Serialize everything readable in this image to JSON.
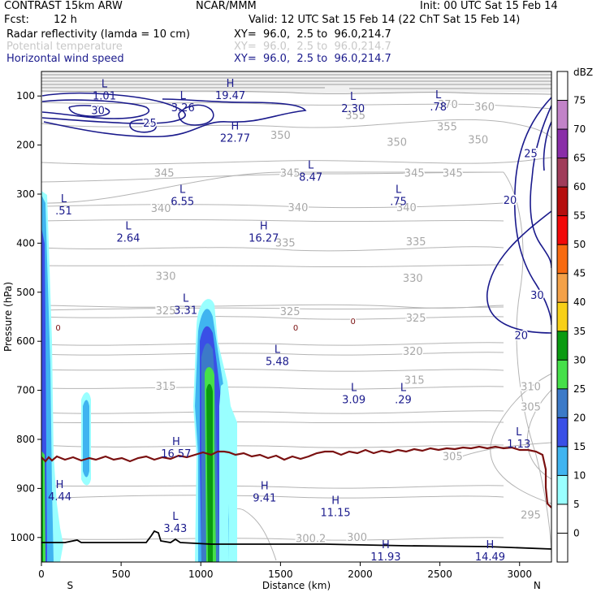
{
  "header": {
    "model": "CONTRAST 15km ARW",
    "center": "NCAR/MMM",
    "init": "Init: 00 UTC Sat 15 Feb 14",
    "fcst_label": "Fcst:",
    "fcst_value": "12 h",
    "valid": "Valid: 12 UTC Sat 15 Feb 14 (22 ChT Sat 15 Feb 14)",
    "fields": [
      {
        "name": "Radar reflectivity (lamda = 10 cm)",
        "xy": "XY=  96.0,  2.5 to  96.0,214.7"
      },
      {
        "name": "Potential temperature",
        "xy": "XY=  96.0,  2.5 to  96.0,214.7"
      },
      {
        "name": "Horizontal wind speed",
        "xy": "XY=  96.0,  2.5 to  96.0,214.7"
      }
    ]
  },
  "chart_data": {
    "type": "heatmap",
    "xlabel": "Distance (km)",
    "ylabel": "Pressure (hPa)",
    "xlim": [
      0,
      3200
    ],
    "ylim": [
      1050,
      50
    ],
    "x_ticks": [
      "0",
      "500",
      "1000",
      "1500",
      "2000",
      "2500",
      "3000"
    ],
    "y_ticks": [
      "100",
      "200",
      "300",
      "400",
      "500",
      "600",
      "700",
      "800",
      "900",
      "1000"
    ],
    "end_labels": [
      "S",
      "N"
    ],
    "colorbar": {
      "unit": "dBZ",
      "levels": [
        "0",
        "5",
        "10",
        "15",
        "20",
        "25",
        "30",
        "35",
        "40",
        "45",
        "50",
        "55",
        "60",
        "65",
        "70",
        "75"
      ],
      "colors": [
        "#ffffff",
        "#ffffff",
        "#99ffff",
        "#40b4f0",
        "#3a4fe6",
        "#3c7ac8",
        "#46e04a",
        "#0a9a10",
        "#f7d018",
        "#f4a148",
        "#f86a10",
        "#f20808",
        "#b50e0e",
        "#a03c5a",
        "#8a2ea8",
        "#c283c8",
        "#ffffff"
      ]
    },
    "theta_labels": [
      {
        "text": "370",
        "x": 2550,
        "p": 118
      },
      {
        "text": "360",
        "x": 2780,
        "p": 123
      },
      {
        "text": "355",
        "x": 1970,
        "p": 140
      },
      {
        "text": "355",
        "x": 2545,
        "p": 163
      },
      {
        "text": "350",
        "x": 1500,
        "p": 181
      },
      {
        "text": "350",
        "x": 2230,
        "p": 195
      },
      {
        "text": "350",
        "x": 2740,
        "p": 190
      },
      {
        "text": "345",
        "x": 770,
        "p": 258
      },
      {
        "text": "345",
        "x": 1560,
        "p": 258
      },
      {
        "text": "345",
        "x": 2340,
        "p": 258
      },
      {
        "text": "345",
        "x": 2580,
        "p": 258
      },
      {
        "text": "340",
        "x": 750,
        "p": 330
      },
      {
        "text": "340",
        "x": 1610,
        "p": 328
      },
      {
        "text": "340",
        "x": 2290,
        "p": 328
      },
      {
        "text": "335",
        "x": 1530,
        "p": 400
      },
      {
        "text": "335",
        "x": 2350,
        "p": 398
      },
      {
        "text": "330",
        "x": 780,
        "p": 468
      },
      {
        "text": "330",
        "x": 2330,
        "p": 472
      },
      {
        "text": "325",
        "x": 780,
        "p": 538
      },
      {
        "text": "325",
        "x": 1560,
        "p": 540
      },
      {
        "text": "325",
        "x": 2350,
        "p": 553
      },
      {
        "text": "320",
        "x": 2330,
        "p": 621
      },
      {
        "text": "315",
        "x": 780,
        "p": 692
      },
      {
        "text": "315",
        "x": 2340,
        "p": 680
      },
      {
        "text": "310",
        "x": 3070,
        "p": 693
      },
      {
        "text": "305",
        "x": 3070,
        "p": 735
      },
      {
        "text": "305",
        "x": 2580,
        "p": 836
      },
      {
        "text": "300.2",
        "x": 1690,
        "p": 1003
      },
      {
        "text": "300",
        "x": 1980,
        "p": 1000
      },
      {
        "text": "295",
        "x": 3070,
        "p": 955
      }
    ],
    "wind_contour_labels": [
      {
        "text": "30",
        "x": 355,
        "p": 130
      },
      {
        "text": "25",
        "x": 680,
        "p": 156
      },
      {
        "text": "25",
        "x": 3070,
        "p": 218
      },
      {
        "text": "20",
        "x": 2940,
        "p": 313
      },
      {
        "text": "30",
        "x": 3110,
        "p": 507
      },
      {
        "text": "20",
        "x": 3010,
        "p": 589
      }
    ],
    "zero_contour_labels": [
      {
        "text": "0",
        "x": 105,
        "p": 573
      },
      {
        "text": "0",
        "x": 1595,
        "p": 573
      },
      {
        "text": "0",
        "x": 1955,
        "p": 560
      }
    ],
    "extrema": [
      {
        "type": "L",
        "value": "1.01",
        "x": 395,
        "p": 86
      },
      {
        "type": "L",
        "value": "3.26",
        "x": 888,
        "p": 110
      },
      {
        "type": "H",
        "value": "19.47",
        "x": 1185,
        "p": 85
      },
      {
        "type": "L",
        "value": "2.30",
        "x": 1955,
        "p": 111
      },
      {
        "type": "L",
        "value": ".78",
        "x": 2490,
        "p": 108
      },
      {
        "type": "H",
        "value": "22.77",
        "x": 1215,
        "p": 172
      },
      {
        "type": "L",
        "value": "8.47",
        "x": 1690,
        "p": 251
      },
      {
        "type": "L",
        "value": "6.55",
        "x": 885,
        "p": 301
      },
      {
        "type": "L",
        "value": ".75",
        "x": 2240,
        "p": 301
      },
      {
        "type": "L",
        "value": ".51",
        "x": 140,
        "p": 320
      },
      {
        "type": "L",
        "value": "2.64",
        "x": 545,
        "p": 375
      },
      {
        "type": "H",
        "value": "16.27",
        "x": 1395,
        "p": 375
      },
      {
        "type": "L",
        "value": "3.31",
        "x": 905,
        "p": 523
      },
      {
        "type": "L",
        "value": "5.48",
        "x": 1480,
        "p": 627
      },
      {
        "type": "L",
        "value": "3.09",
        "x": 1960,
        "p": 705
      },
      {
        "type": "L",
        "value": ".29",
        "x": 2270,
        "p": 705
      },
      {
        "type": "H",
        "value": "16.57",
        "x": 845,
        "p": 815
      },
      {
        "type": "L",
        "value": "1.13",
        "x": 2995,
        "p": 795
      },
      {
        "type": "H",
        "value": "4.44",
        "x": 115,
        "p": 903
      },
      {
        "type": "H",
        "value": "9.41",
        "x": 1400,
        "p": 905
      },
      {
        "type": "H",
        "value": "11.15",
        "x": 1845,
        "p": 935
      },
      {
        "type": "L",
        "value": "3.43",
        "x": 840,
        "p": 967
      },
      {
        "type": "H",
        "value": "11.93",
        "x": 2160,
        "p": 1025
      },
      {
        "type": "H",
        "value": "14.49",
        "x": 2815,
        "p": 1025
      }
    ]
  }
}
